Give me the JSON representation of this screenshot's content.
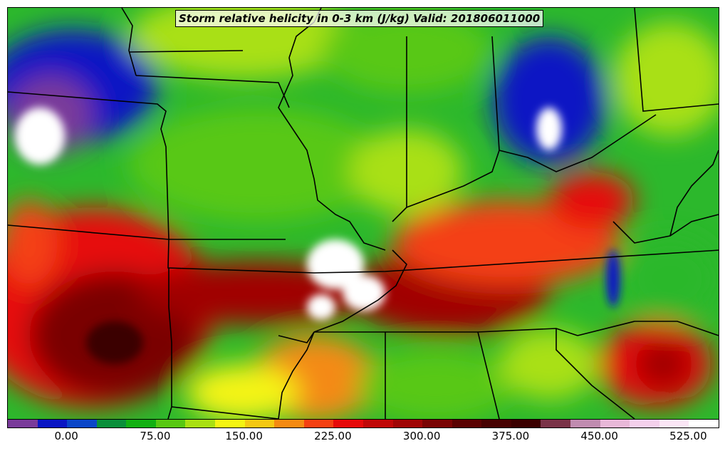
{
  "title": "Storm relative helicity in 0-3 km (J/kg) Valid: 201806011000",
  "colorbar": {
    "ticks": [
      "0.00",
      "75.00",
      "150.00",
      "225.00",
      "300.00",
      "375.00",
      "450.00",
      "525.00"
    ],
    "colors": [
      "#7a3b9a",
      "#0b17c4",
      "#0b46c8",
      "#0a8f3a",
      "#12b012",
      "#58c812",
      "#a9e012",
      "#f4f412",
      "#f4c812",
      "#f48a12",
      "#f44012",
      "#e60a0a",
      "#c00808",
      "#a00606",
      "#7a0404",
      "#5a0202",
      "#460101",
      "#3a0000",
      "#7a3348",
      "#c08cb0",
      "#e8b8d8",
      "#f4d0ec",
      "#fbe6f6",
      "#ffffff"
    ]
  }
}
